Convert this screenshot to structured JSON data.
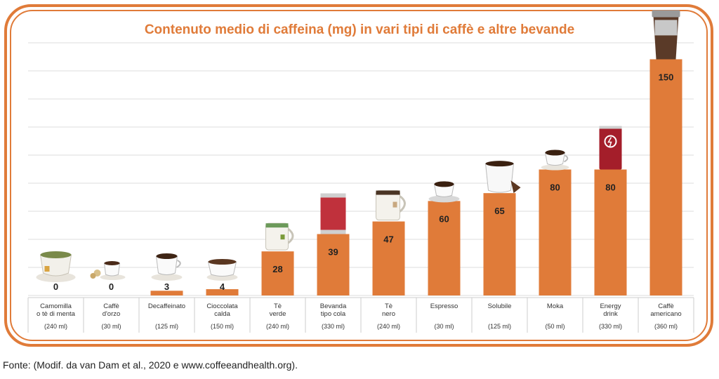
{
  "colors": {
    "accent": "#e07b39",
    "bar": "#e07b39",
    "grid": "#dddddd"
  },
  "chart_data": {
    "type": "bar",
    "title": "Contenuto medio di caffeina (mg) in vari tipi di caffè e altre bevande",
    "categories": [
      {
        "name": [
          "Camomilla",
          "o tè di menta"
        ],
        "volume": "(240 ml)",
        "icon": "chamomile-cup-icon"
      },
      {
        "name": [
          "Caffè",
          "d'orzo"
        ],
        "volume": "(30 ml)",
        "icon": "barley-coffee-cup-icon"
      },
      {
        "name": [
          "Decaffeinato"
        ],
        "volume": "(125 ml)",
        "icon": "decaf-cup-icon"
      },
      {
        "name": [
          "Cioccolata",
          "calda"
        ],
        "volume": "(150 ml)",
        "icon": "hot-chocolate-cup-icon"
      },
      {
        "name": [
          "Tè",
          "verde"
        ],
        "volume": "(240 ml)",
        "icon": "green-tea-mug-icon"
      },
      {
        "name": [
          "Bevanda",
          "tipo cola"
        ],
        "volume": "(330 ml)",
        "icon": "cola-can-icon"
      },
      {
        "name": [
          "Tè",
          "nero"
        ],
        "volume": "(240 ml)",
        "icon": "black-tea-mug-icon"
      },
      {
        "name": [
          "Espresso"
        ],
        "volume": "(30 ml)",
        "icon": "espresso-cup-icon"
      },
      {
        "name": [
          "Solubile"
        ],
        "volume": "(125 ml)",
        "icon": "instant-coffee-mug-icon"
      },
      {
        "name": [
          "Moka"
        ],
        "volume": "(50 ml)",
        "icon": "moka-cup-icon"
      },
      {
        "name": [
          "Energy",
          "drink"
        ],
        "volume": "(330 ml)",
        "icon": "energy-drink-can-icon"
      },
      {
        "name": [
          "Caffè",
          "americano"
        ],
        "volume": "(360 ml)",
        "icon": "americano-cup-icon"
      }
    ],
    "values": [
      0,
      0,
      3,
      4,
      28,
      39,
      47,
      60,
      65,
      80,
      80,
      150
    ],
    "ylim": [
      0,
      160
    ],
    "grid": true
  },
  "source": "Fonte: (Modif. da van Dam et al., 2020 e www.coffeeandhealth.org)."
}
